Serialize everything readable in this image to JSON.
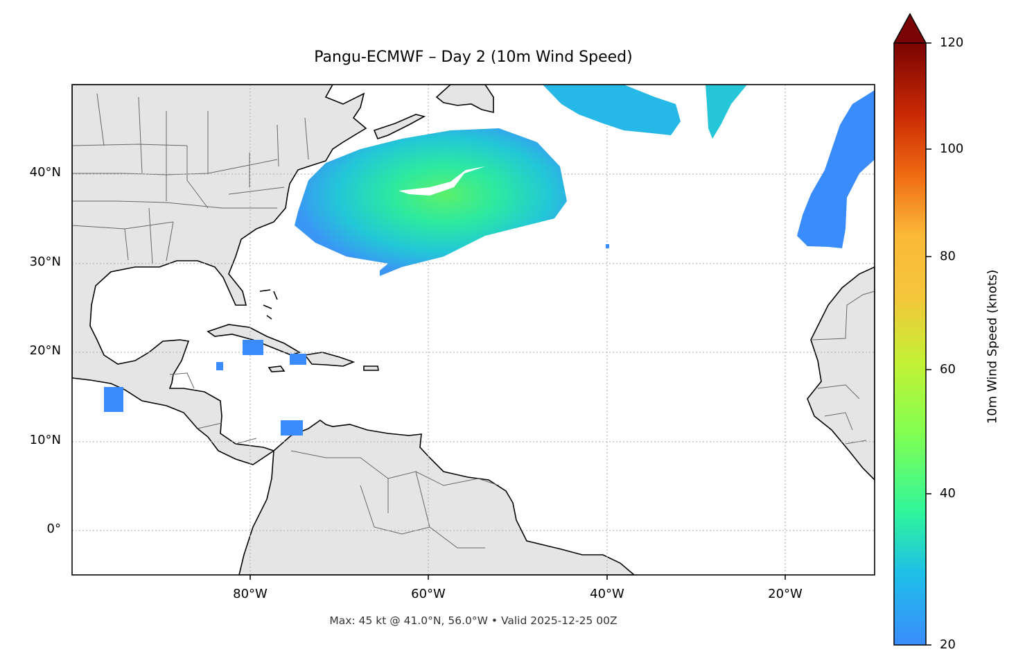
{
  "title": "Pangu-ECMWF – Day 2 (10m Wind Speed)",
  "footer": "Max: 45 kt @ 41.0°N, 56.0°W • Valid 2025-12-25 00Z",
  "map": {
    "extent": {
      "lon": [
        -100,
        -10
      ],
      "lat": [
        -5,
        50
      ]
    },
    "lat_ticks": [
      {
        "value": 40,
        "label": "40°N"
      },
      {
        "value": 30,
        "label": "30°N"
      },
      {
        "value": 20,
        "label": "20°N"
      },
      {
        "value": 10,
        "label": "10°N"
      },
      {
        "value": 0,
        "label": "0°"
      }
    ],
    "lon_ticks": [
      {
        "value": -80,
        "label": "80°W"
      },
      {
        "value": -60,
        "label": "60°W"
      },
      {
        "value": -40,
        "label": "40°W"
      },
      {
        "value": -20,
        "label": "20°W"
      }
    ],
    "gridlines": "dotted",
    "land_color": "#e5e5e5",
    "coast_color": "#000000",
    "border_color": "#666666"
  },
  "colorbar": {
    "label": "10m Wind Speed (knots)",
    "ticks": [
      "20",
      "40",
      "60",
      "80",
      "100",
      "120"
    ],
    "range": [
      20,
      120
    ],
    "extend": "max",
    "colormap": "turbo",
    "colors": [
      "#3a8cfd",
      "#1ccfd6",
      "#2ff59b",
      "#a4fc3c",
      "#e1dc37",
      "#fbb938",
      "#f57d15",
      "#d23105",
      "#a51301",
      "#7a0403"
    ]
  },
  "wind_features": [
    {
      "name": "mid-atlantic-storm",
      "peak_kt": 45
    },
    {
      "name": "north-atlantic-band",
      "peak_kt": 30
    },
    {
      "name": "north-band-2",
      "peak_kt": 28
    },
    {
      "name": "iberia-band",
      "peak_kt": 25
    }
  ]
}
